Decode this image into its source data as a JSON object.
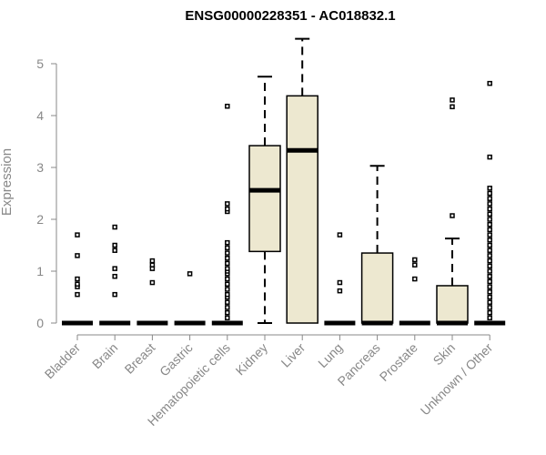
{
  "chart_data": {
    "type": "box",
    "title": "ENSG00000228351 - AC018832.1",
    "ylabel": "Expression",
    "xlabel": "",
    "ylim": [
      0,
      5.5
    ],
    "yticks": [
      0,
      1,
      2,
      3,
      4,
      5
    ],
    "grid": false,
    "box_fill": "#ede8d0",
    "categories": [
      "Bladder",
      "Brain",
      "Breast",
      "Gastric",
      "Hematopoietic cells",
      "Kidney",
      "Liver",
      "Lung",
      "Pancreas",
      "Prostate",
      "Skin",
      "Unknown / Other"
    ],
    "boxes": [
      {
        "min": 0,
        "q1": 0,
        "median": 0,
        "q3": 0,
        "max": 0,
        "outliers": [
          0.55,
          0.7,
          0.75,
          0.85,
          1.3,
          1.7
        ]
      },
      {
        "min": 0,
        "q1": 0,
        "median": 0,
        "q3": 0,
        "max": 0,
        "outliers": [
          0.55,
          0.9,
          1.05,
          1.4,
          1.5,
          1.85
        ]
      },
      {
        "min": 0,
        "q1": 0,
        "median": 0,
        "q3": 0,
        "max": 0,
        "outliers": [
          0.78,
          1.05,
          1.12,
          1.2
        ]
      },
      {
        "min": 0,
        "q1": 0,
        "median": 0,
        "q3": 0,
        "max": 0,
        "outliers": [
          0.95
        ]
      },
      {
        "min": 0,
        "q1": 0,
        "median": 0,
        "q3": 0,
        "max": 0,
        "outliers": [
          0.1,
          0.2,
          0.3,
          0.4,
          0.5,
          0.55,
          0.65,
          0.75,
          0.85,
          0.95,
          1.0,
          1.05,
          1.15,
          1.25,
          1.35,
          1.45,
          1.55,
          2.15,
          2.2,
          2.3,
          4.18
        ]
      },
      {
        "min": 0,
        "q1": 1.38,
        "median": 2.56,
        "q3": 3.42,
        "max": 4.75,
        "outliers": []
      },
      {
        "min": 0,
        "q1": 0,
        "median": 3.33,
        "q3": 4.38,
        "max": 5.48,
        "outliers": []
      },
      {
        "min": 0,
        "q1": 0,
        "median": 0,
        "q3": 0,
        "max": 0,
        "outliers": [
          0.62,
          0.78,
          1.7
        ]
      },
      {
        "min": 0,
        "q1": 0,
        "median": 0,
        "q3": 1.35,
        "max": 3.03,
        "outliers": []
      },
      {
        "min": 0,
        "q1": 0,
        "median": 0,
        "q3": 0,
        "max": 0,
        "outliers": [
          0.85,
          1.12,
          1.22
        ]
      },
      {
        "min": 0,
        "q1": 0,
        "median": 0,
        "q3": 0.72,
        "max": 1.63,
        "outliers": [
          2.07,
          4.17,
          4.3
        ]
      },
      {
        "min": 0,
        "q1": 0,
        "median": 0,
        "q3": 0,
        "max": 0,
        "outliers": [
          0.1,
          0.2,
          0.3,
          0.4,
          0.5,
          0.6,
          0.7,
          0.8,
          0.9,
          1.0,
          1.1,
          1.2,
          1.3,
          1.4,
          1.5,
          1.6,
          1.7,
          1.8,
          1.9,
          2.0,
          2.1,
          2.2,
          2.3,
          2.4,
          2.5,
          2.6,
          3.2,
          4.62
        ]
      }
    ]
  }
}
